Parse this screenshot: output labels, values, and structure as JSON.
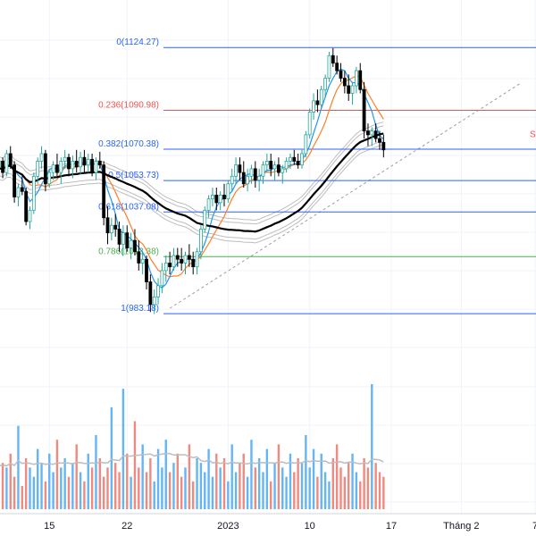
{
  "chart_data": {
    "type": "candlestick",
    "price_pane": {
      "fib_levels": [
        {
          "label": "0(1124.27)",
          "value": 1124.27,
          "color": "#2962ff"
        },
        {
          "label": "0.236(1090.98)",
          "value": 1090.98,
          "color": "#ef5350"
        },
        {
          "label": "0.382(1070.38)",
          "value": 1070.38,
          "color": "#2962ff"
        },
        {
          "label": "0.5(1053.73)",
          "value": 1053.73,
          "color": "#2962ff"
        },
        {
          "label": "0.618(1037.08)",
          "value": 1037.08,
          "color": "#2962ff"
        },
        {
          "label": "0.786(1013.38)",
          "value": 1013.38,
          "color": "#4caf50"
        },
        {
          "label": "1(983.18)",
          "value": 983.18,
          "color": "#2962ff"
        }
      ],
      "ylim": [
        960,
        1140
      ],
      "candles": [
        [
          1060,
          1064,
          1052,
          1056
        ],
        [
          1056,
          1062,
          1050,
          1061
        ],
        [
          1061,
          1068,
          1058,
          1064
        ],
        [
          1064,
          1066,
          1055,
          1058
        ],
        [
          1058,
          1070,
          1056,
          1068
        ],
        [
          1068,
          1072,
          1060,
          1062
        ],
        [
          1062,
          1064,
          1042,
          1045
        ],
        [
          1045,
          1052,
          1040,
          1050
        ],
        [
          1050,
          1056,
          1046,
          1048
        ],
        [
          1048,
          1050,
          1030,
          1032
        ],
        [
          1032,
          1040,
          1028,
          1038
        ],
        [
          1038,
          1058,
          1036,
          1056
        ],
        [
          1056,
          1066,
          1052,
          1064
        ],
        [
          1064,
          1072,
          1060,
          1068
        ],
        [
          1068,
          1070,
          1048,
          1052
        ],
        [
          1052,
          1060,
          1050,
          1058
        ],
        [
          1058,
          1064,
          1054,
          1062
        ],
        [
          1062,
          1068,
          1056,
          1058
        ],
        [
          1058,
          1066,
          1052,
          1064
        ],
        [
          1064,
          1070,
          1060,
          1066
        ],
        [
          1066,
          1068,
          1056,
          1060
        ],
        [
          1060,
          1067,
          1055,
          1064
        ],
        [
          1064,
          1070,
          1058,
          1061
        ],
        [
          1061,
          1069,
          1057,
          1066
        ],
        [
          1066,
          1070,
          1058,
          1062
        ],
        [
          1062,
          1068,
          1058,
          1065
        ],
        [
          1065,
          1068,
          1056,
          1058
        ],
        [
          1058,
          1066,
          1054,
          1064
        ],
        [
          1064,
          1069,
          1060,
          1062
        ],
        [
          1062,
          1064,
          1030,
          1034
        ],
        [
          1034,
          1040,
          1020,
          1026
        ],
        [
          1026,
          1034,
          1022,
          1030
        ],
        [
          1030,
          1036,
          1024,
          1028
        ],
        [
          1028,
          1032,
          1016,
          1020
        ],
        [
          1020,
          1030,
          1014,
          1026
        ],
        [
          1026,
          1030,
          1016,
          1018
        ],
        [
          1018,
          1026,
          1012,
          1022
        ],
        [
          1022,
          1028,
          1014,
          1016
        ],
        [
          1016,
          1022,
          1006,
          1010
        ],
        [
          1010,
          1016,
          1004,
          1012
        ],
        [
          1012,
          1014,
          996,
          1000
        ],
        [
          1000,
          1004,
          984,
          988
        ],
        [
          988,
          996,
          983,
          992
        ],
        [
          992,
          1002,
          988,
          998
        ],
        [
          998,
          1010,
          994,
          1006
        ],
        [
          1006,
          1014,
          1000,
          1010
        ],
        [
          1010,
          1016,
          1004,
          1008
        ],
        [
          1008,
          1018,
          1006,
          1014
        ],
        [
          1014,
          1018,
          1008,
          1012
        ],
        [
          1012,
          1018,
          1006,
          1010
        ],
        [
          1010,
          1016,
          1004,
          1014
        ],
        [
          1014,
          1020,
          1008,
          1012
        ],
        [
          1012,
          1016,
          1004,
          1008
        ],
        [
          1008,
          1018,
          1004,
          1016
        ],
        [
          1016,
          1030,
          1012,
          1028
        ],
        [
          1028,
          1040,
          1026,
          1038
        ],
        [
          1038,
          1046,
          1034,
          1044
        ],
        [
          1044,
          1050,
          1040,
          1046
        ],
        [
          1046,
          1050,
          1038,
          1042
        ],
        [
          1042,
          1048,
          1038,
          1046
        ],
        [
          1046,
          1052,
          1040,
          1044
        ],
        [
          1044,
          1054,
          1042,
          1052
        ],
        [
          1052,
          1060,
          1048,
          1056
        ],
        [
          1056,
          1066,
          1052,
          1062
        ],
        [
          1062,
          1066,
          1054,
          1058
        ],
        [
          1058,
          1064,
          1050,
          1052
        ],
        [
          1052,
          1060,
          1048,
          1056
        ],
        [
          1056,
          1062,
          1052,
          1060
        ],
        [
          1060,
          1064,
          1050,
          1054
        ],
        [
          1054,
          1060,
          1048,
          1056
        ],
        [
          1056,
          1064,
          1052,
          1062
        ],
        [
          1062,
          1068,
          1058,
          1064
        ],
        [
          1064,
          1068,
          1056,
          1060
        ],
        [
          1060,
          1064,
          1054,
          1062
        ],
        [
          1062,
          1066,
          1056,
          1058
        ],
        [
          1058,
          1062,
          1052,
          1060
        ],
        [
          1060,
          1066,
          1058,
          1064
        ],
        [
          1064,
          1068,
          1060,
          1066
        ],
        [
          1066,
          1070,
          1062,
          1064
        ],
        [
          1064,
          1068,
          1060,
          1062
        ],
        [
          1062,
          1070,
          1060,
          1068
        ],
        [
          1068,
          1080,
          1066,
          1078
        ],
        [
          1078,
          1092,
          1076,
          1090
        ],
        [
          1090,
          1100,
          1086,
          1096
        ],
        [
          1096,
          1102,
          1090,
          1094
        ],
        [
          1094,
          1104,
          1092,
          1102
        ],
        [
          1102,
          1110,
          1098,
          1108
        ],
        [
          1108,
          1122,
          1106,
          1120
        ],
        [
          1120,
          1124,
          1114,
          1116
        ],
        [
          1116,
          1120,
          1110,
          1112
        ],
        [
          1112,
          1116,
          1106,
          1108
        ],
        [
          1108,
          1112,
          1100,
          1104
        ],
        [
          1104,
          1110,
          1096,
          1100
        ],
        [
          1100,
          1106,
          1094,
          1104
        ],
        [
          1104,
          1114,
          1100,
          1112
        ],
        [
          1112,
          1116,
          1100,
          1102
        ],
        [
          1102,
          1106,
          1076,
          1080
        ],
        [
          1080,
          1084,
          1072,
          1078
        ],
        [
          1078,
          1082,
          1072,
          1080
        ],
        [
          1080,
          1084,
          1074,
          1076
        ],
        [
          1076,
          1080,
          1070,
          1074
        ],
        [
          1074,
          1078,
          1066,
          1070
        ]
      ],
      "ma_slow_label": "S"
    },
    "volume_pane": {
      "volumes": [
        8,
        14,
        6,
        10,
        9,
        12,
        7,
        18,
        5,
        11,
        9,
        7,
        13,
        10,
        6,
        12,
        8,
        15,
        9,
        11,
        7,
        10,
        14,
        8,
        6,
        12,
        9,
        16,
        11,
        7,
        9,
        22,
        10,
        8,
        26,
        12,
        7,
        19,
        9,
        14,
        8,
        11,
        6,
        13,
        9,
        15,
        8,
        10,
        12,
        7,
        9,
        14,
        6,
        11,
        10,
        8,
        13,
        7,
        12,
        9,
        11,
        6,
        14,
        8,
        10,
        12,
        7,
        15,
        9,
        11,
        8,
        13,
        6,
        10,
        14,
        9,
        7,
        12,
        8,
        11,
        10,
        16,
        9,
        13,
        7,
        12,
        8,
        6,
        11,
        14,
        9,
        7,
        10,
        12,
        8,
        6,
        11,
        9,
        27,
        10,
        8,
        7
      ],
      "up_color": "#64b5f6",
      "down_color": "#ef8a80"
    },
    "x_ticks": [
      {
        "label": "15",
        "index": 15
      },
      {
        "label": "22",
        "index": 35
      },
      {
        "label": "2023",
        "index": 61
      },
      {
        "label": "10",
        "index": 82
      },
      {
        "label": "17",
        "index": 103
      },
      {
        "label": "Tháng 2",
        "index": 121
      },
      {
        "label": "7",
        "index": 140
      }
    ],
    "colors": {
      "up": "#26a69a",
      "down": "#000000",
      "ma_fast": "#2196f3",
      "ma_mid": "#ff7f27",
      "ma_slow": "#000000",
      "band": "#bdbdbd",
      "trend": "#9e9e9e",
      "ma_slow_label": "#ef5350"
    }
  }
}
